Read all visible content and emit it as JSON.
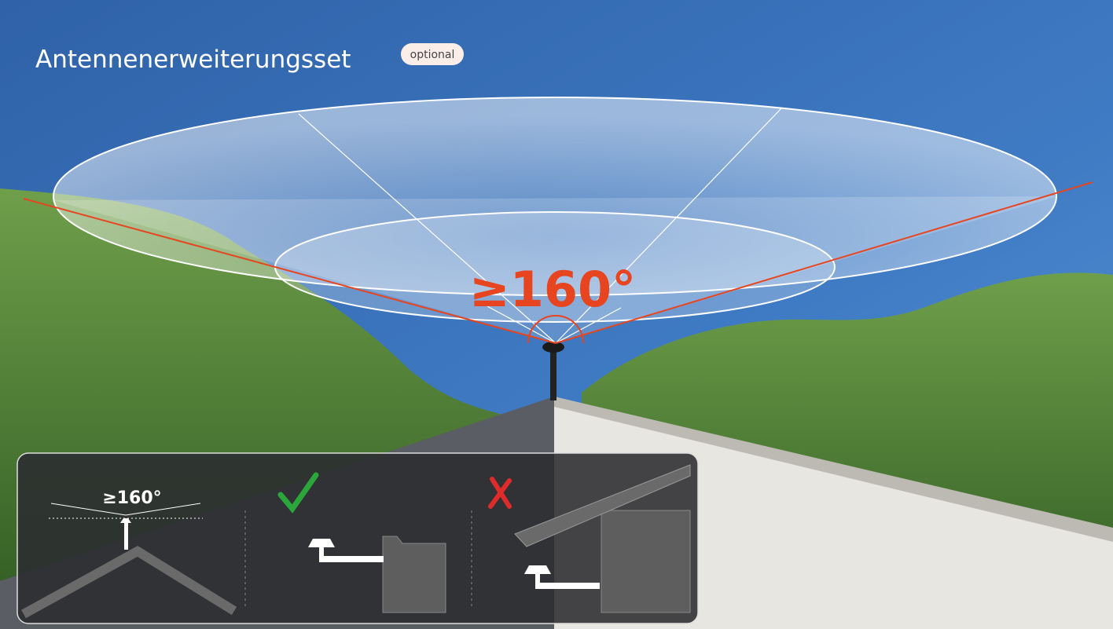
{
  "header": {
    "title": "Antennenerweiterungsset",
    "badge": "optional"
  },
  "coverage": {
    "angle_label": "≥160°"
  },
  "inset": {
    "angle_label": "≥160°"
  }
}
